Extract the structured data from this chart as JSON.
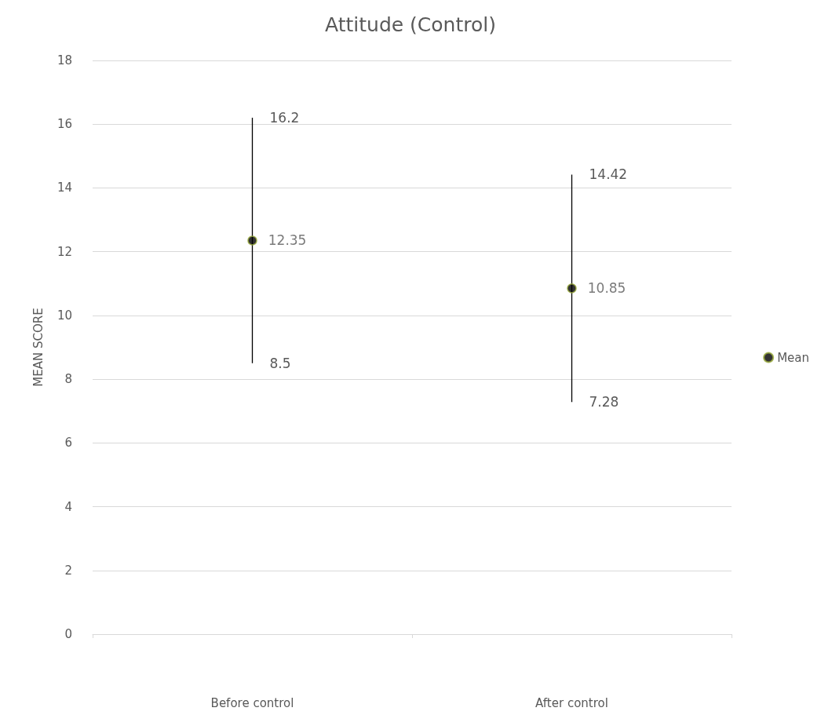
{
  "chart_data": {
    "type": "scatter",
    "title": "Attitude (Control)",
    "ylabel": "MEAN SCORE",
    "categories": [
      "Before control",
      "After control"
    ],
    "series": [
      {
        "name": "Mean",
        "color": "#000000",
        "values": [
          12.35,
          10.85
        ],
        "errors": [
          [
            8.5,
            16.2
          ],
          [
            7.28,
            14.42
          ]
        ]
      }
    ],
    "data_labels": true,
    "annotations": [
      {
        "text": "16.2",
        "x": "Before control",
        "y": 16.2
      },
      {
        "text": "8.5",
        "x": "Before control",
        "y": 8.5
      },
      {
        "text": "14.42",
        "x": "After control",
        "y": 14.42
      },
      {
        "text": "7.28",
        "x": "After control",
        "y": 7.28
      }
    ],
    "ylim": [
      0,
      18
    ],
    "yticks": [
      0,
      2,
      4,
      6,
      8,
      10,
      12,
      14,
      16,
      18
    ],
    "grid": "y",
    "legend": "right",
    "marker": "circle"
  }
}
